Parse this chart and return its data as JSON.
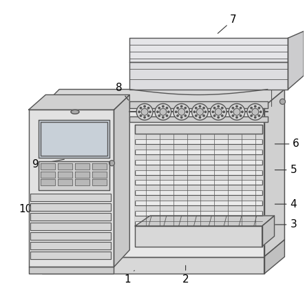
{
  "background_color": "#ffffff",
  "line_color": "#555555",
  "label_color": "#000000",
  "figsize": [
    4.43,
    4.15
  ],
  "dpi": 100,
  "annotations": [
    [
      "1",
      [
        195,
        395
      ],
      [
        185,
        408
      ]
    ],
    [
      "2",
      [
        270,
        385
      ],
      [
        270,
        408
      ]
    ],
    [
      "3",
      [
        398,
        328
      ],
      [
        428,
        328
      ]
    ],
    [
      "4",
      [
        398,
        298
      ],
      [
        428,
        298
      ]
    ],
    [
      "5",
      [
        398,
        248
      ],
      [
        428,
        248
      ]
    ],
    [
      "6",
      [
        398,
        210
      ],
      [
        432,
        210
      ]
    ],
    [
      "7",
      [
        315,
        50
      ],
      [
        340,
        28
      ]
    ],
    [
      "8",
      [
        188,
        148
      ],
      [
        172,
        128
      ]
    ],
    [
      "9",
      [
        95,
        232
      ],
      [
        50,
        240
      ]
    ],
    [
      "10",
      [
        58,
        288
      ],
      [
        35,
        305
      ]
    ]
  ]
}
